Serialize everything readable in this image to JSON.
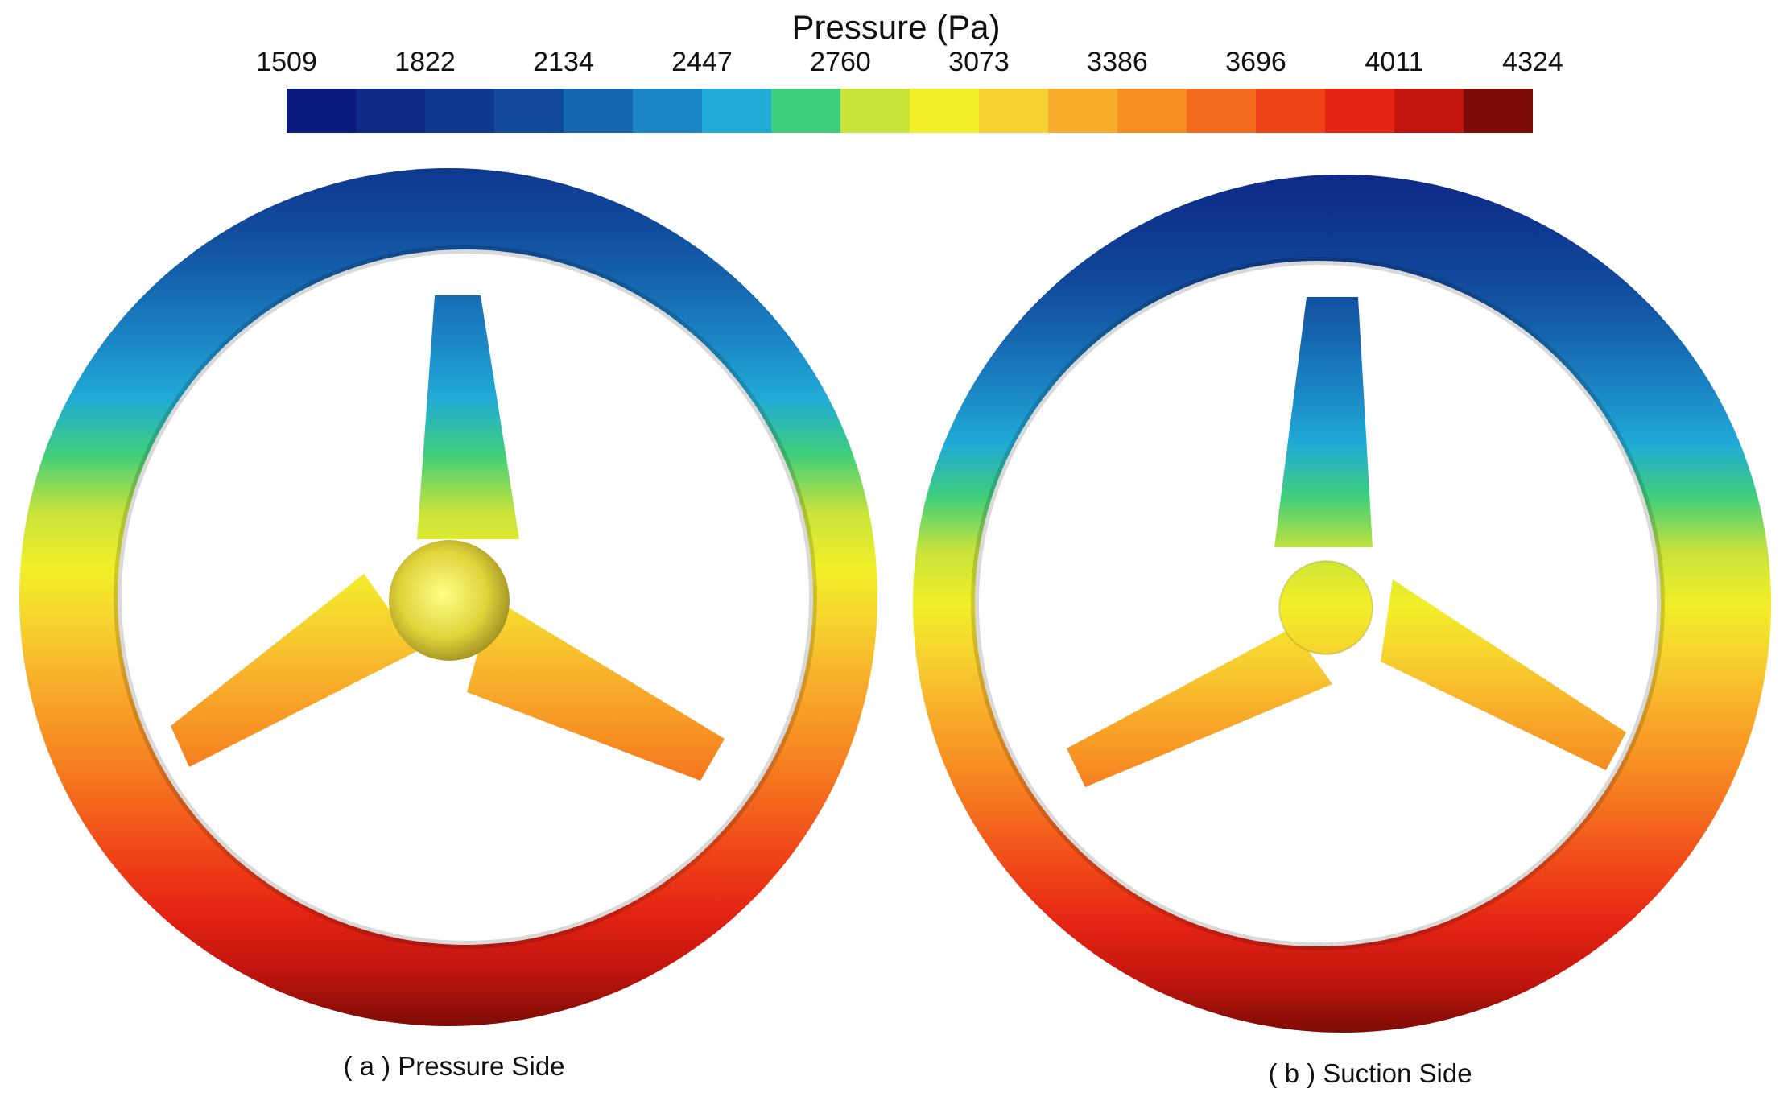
{
  "legend": {
    "title": "Pressure (Pa)",
    "ticks": [
      "1509",
      "1822",
      "2134",
      "2447",
      "2760",
      "3073",
      "3386",
      "3696",
      "4011",
      "4324"
    ],
    "colors": [
      "#0a1a7e",
      "#0e2a86",
      "#0f3890",
      "#114a9c",
      "#1566ae",
      "#1b86c5",
      "#20aad6",
      "#3fcf7b",
      "#c8e33a",
      "#f2ef28",
      "#f7d12f",
      "#f8ad2a",
      "#f78e22",
      "#f46a1e",
      "#f04418",
      "#e42413",
      "#c2150e",
      "#7e0c06"
    ]
  },
  "panels": [
    {
      "caption": "( a ) Pressure Side"
    },
    {
      "caption": "( b ) Suction Side"
    }
  ]
}
